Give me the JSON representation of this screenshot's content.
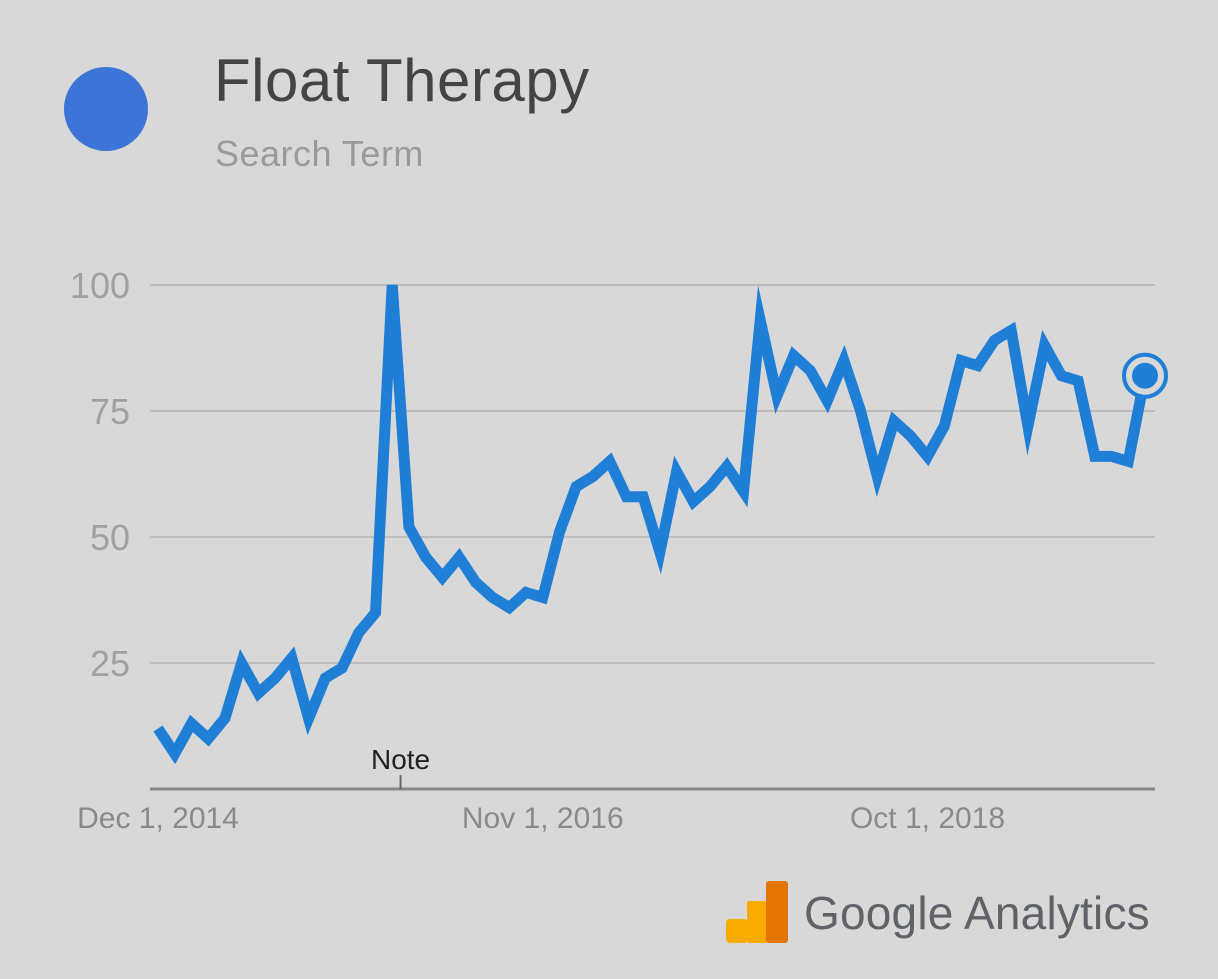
{
  "legend": {
    "term": "Float Therapy",
    "term_type": "Search Term",
    "color": "#3d74d8"
  },
  "brand": {
    "name": "Google",
    "product": "Analytics",
    "icon": "google-analytics-logo",
    "name_color": "#5f6368",
    "product_color": "#5f6368",
    "logo_colors": [
      "#f9ab00",
      "#e37400"
    ]
  },
  "chart_data": {
    "type": "line",
    "series": [
      {
        "name": "Float Therapy",
        "color": "#1f7fd6",
        "values": [
          12,
          7,
          13,
          10,
          14,
          25,
          19,
          22,
          26,
          14,
          22,
          24,
          31,
          35,
          100,
          52,
          46,
          42,
          46,
          41,
          38,
          36,
          39,
          38,
          51,
          60,
          62,
          65,
          58,
          58,
          47,
          63,
          57,
          60,
          64,
          59,
          93,
          78,
          86,
          83,
          77,
          85,
          75,
          62,
          73,
          70,
          66,
          72,
          85,
          84,
          89,
          91,
          72,
          88,
          82,
          81,
          66,
          66,
          65,
          82
        ]
      }
    ],
    "x_tick_labels": [
      "Dec 1, 2014",
      "Nov 1, 2016",
      "Oct 1, 2018"
    ],
    "x_tick_indices": [
      0,
      23,
      46
    ],
    "y_ticks": [
      25,
      50,
      75,
      100
    ],
    "ylim": [
      0,
      100
    ],
    "grid": true,
    "annotation": {
      "label": "Note",
      "x_index": 14.5
    },
    "highlight_last_point": true
  }
}
